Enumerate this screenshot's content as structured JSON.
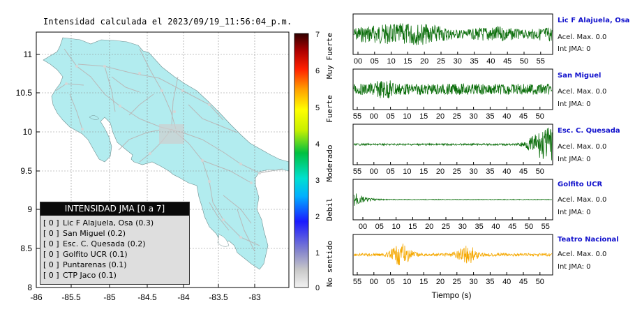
{
  "map": {
    "title": "Intensidad calculada el 2023/09/19_11:56:04_p.m.",
    "x_ticks": [
      "-86",
      "-85.5",
      "-85",
      "-84.5",
      "-84",
      "-83.5",
      "-83"
    ],
    "y_ticks": [
      "11",
      "10.5",
      "10",
      "9.5",
      "9",
      "8.5",
      "8"
    ],
    "land_color": "#b2ecef",
    "road_color": "#b9b9b9"
  },
  "legend": {
    "header": "INTENSIDAD JMA [0 a 7]",
    "items": [
      {
        "level": "[ 0 ]",
        "label": "Lic F Alajuela, Osa (0.3)"
      },
      {
        "level": "[ 0 ]",
        "label": "San Miguel (0.2)"
      },
      {
        "level": "[ 0 ]",
        "label": "Esc. C. Quesada (0.2)"
      },
      {
        "level": "[ 0 ]",
        "label": "Golfito UCR (0.1)"
      },
      {
        "level": "[ 0 ]",
        "label": "Puntarenas (0.1)"
      },
      {
        "level": "[ 0 ]",
        "label": "CTP Jaco (0.1)"
      }
    ]
  },
  "colorbar": {
    "ticks": [
      "7",
      "6",
      "5",
      "4",
      "3",
      "2",
      "1",
      "0"
    ],
    "bands": [
      "Muy Fuerte",
      "Fuerte",
      "Moderado",
      "Debil",
      "No sentido"
    ],
    "stops": [
      "#cfcfcf",
      "#8a8ad0",
      "#1a1aff",
      "#00c8ff",
      "#00c040",
      "#ffff00",
      "#ff8800",
      "#ff0000",
      "#600000"
    ]
  },
  "seismograms": {
    "xlabel": "Tiempo (s)",
    "stations": [
      {
        "name": "Lic F Alajuela, Osa",
        "accel": "Acel. Max. 0.0",
        "int": "Int JMA: 0",
        "color": "#0b6e0b",
        "ticks": [
          "00",
          "05",
          "10",
          "15",
          "20",
          "25",
          "30",
          "35",
          "40",
          "45",
          "50",
          "55"
        ]
      },
      {
        "name": "San Miguel",
        "accel": "Acel. Max. 0.0",
        "int": "Int JMA: 0",
        "color": "#0b6e0b",
        "ticks": [
          "55",
          "00",
          "05",
          "10",
          "15",
          "20",
          "25",
          "30",
          "35",
          "40",
          "45",
          "50"
        ]
      },
      {
        "name": "Esc. C. Quesada",
        "accel": "Acel. Max. 0.0",
        "int": "Int JMA: 0",
        "color": "#0b6e0b",
        "ticks": [
          "55",
          "00",
          "05",
          "10",
          "15",
          "20",
          "25",
          "30",
          "35",
          "40",
          "45",
          "50"
        ]
      },
      {
        "name": "Golfito UCR",
        "accel": "Acel. Max. 0.0",
        "int": "Int JMA: 0",
        "color": "#0b6e0b",
        "ticks": [
          "00",
          "05",
          "10",
          "15",
          "20",
          "25",
          "30",
          "35",
          "40",
          "45",
          "50",
          "55"
        ]
      },
      {
        "name": "Teatro Nacional",
        "accel": "Acel. Max. 0.0",
        "int": "Int JMA: 0",
        "color": "#f5a800",
        "ticks": [
          "55",
          "00",
          "05",
          "10",
          "15",
          "20",
          "25",
          "30",
          "35",
          "40",
          "45",
          "50"
        ]
      }
    ]
  },
  "chart_data": [
    {
      "type": "heatmap",
      "title": "Intensidad calculada el 2023/09/19_11:56:04_p.m.",
      "xlim": [
        -86,
        -82.5
      ],
      "ylim": [
        8,
        11.3
      ],
      "grid": true,
      "x_ticks": [
        -86,
        -85.5,
        -85,
        -84.5,
        -84,
        -83.5,
        -83
      ],
      "y_ticks": [
        8,
        8.5,
        9,
        9.5,
        10,
        10.5,
        11
      ],
      "colorbar_range": [
        0,
        7
      ],
      "colorbar_labels": [
        "No sentido",
        "Debil",
        "Moderado",
        "Fuerte",
        "Muy Fuerte"
      ],
      "legend_title": "INTENSIDAD JMA [0 a 7]",
      "stations": [
        {
          "name": "Lic F Alajuela, Osa",
          "intensity": 0,
          "value": 0.3
        },
        {
          "name": "San Miguel",
          "intensity": 0,
          "value": 0.2
        },
        {
          "name": "Esc. C. Quesada",
          "intensity": 0,
          "value": 0.2
        },
        {
          "name": "Golfito UCR",
          "intensity": 0,
          "value": 0.1
        },
        {
          "name": "Puntarenas",
          "intensity": 0,
          "value": 0.1
        },
        {
          "name": "CTP Jaco",
          "intensity": 0,
          "value": 0.1
        }
      ]
    },
    {
      "type": "line",
      "xlabel": "Tiempo (s)",
      "series": [
        {
          "name": "Lic F Alajuela, Osa",
          "accel_max": 0.0,
          "int_jma": 0
        },
        {
          "name": "San Miguel",
          "accel_max": 0.0,
          "int_jma": 0
        },
        {
          "name": "Esc. C. Quesada",
          "accel_max": 0.0,
          "int_jma": 0
        },
        {
          "name": "Golfito UCR",
          "accel_max": 0.0,
          "int_jma": 0
        },
        {
          "name": "Teatro Nacional",
          "accel_max": 0.0,
          "int_jma": 0
        }
      ]
    }
  ]
}
